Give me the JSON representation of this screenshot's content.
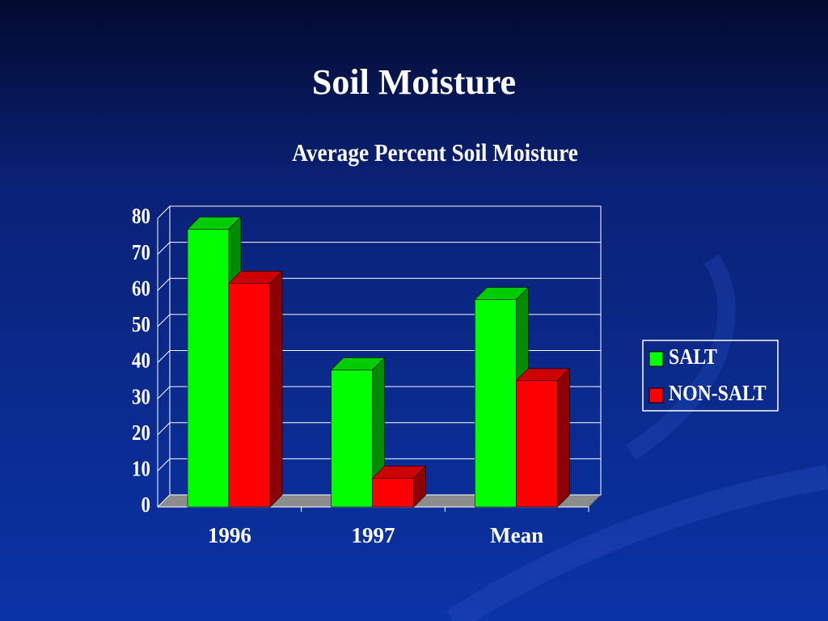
{
  "title": "Soil Moisture",
  "chart_data": {
    "type": "bar3d",
    "title": "Average Percent Soil Moisture",
    "categories": [
      "1996",
      "1997",
      "Mean"
    ],
    "series": [
      {
        "name": "SALT",
        "color": "#00ff00",
        "values": [
          77,
          38,
          57.5
        ]
      },
      {
        "name": "NON-SALT",
        "color": "#ff0000",
        "values": [
          62,
          8,
          35
        ]
      }
    ],
    "ylim": [
      0,
      80
    ],
    "yticks": [
      0,
      10,
      20,
      30,
      40,
      50,
      60,
      70,
      80
    ],
    "grid": true,
    "legend": "right"
  }
}
